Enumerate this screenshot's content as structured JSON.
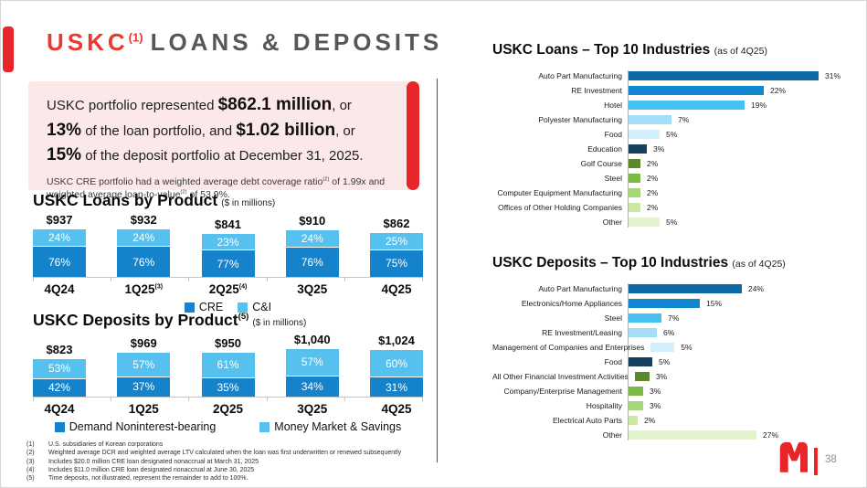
{
  "slide": {
    "title_red": "USKC",
    "title_sup": "(1)",
    "title_rest": "LOANS & DEPOSITS",
    "page_number": "38",
    "accent_red": "#e8262a"
  },
  "callout": {
    "p1": [
      {
        "t": "USKC portfolio represented ",
        "b": false
      },
      {
        "t": "$862.1 million",
        "b": true
      },
      {
        "t": ", or ",
        "b": false
      },
      {
        "t": "13%",
        "b": true
      },
      {
        "t": " of the loan portfolio, and ",
        "b": false
      },
      {
        "t": "$1.02 billion",
        "b": true
      },
      {
        "t": ", or ",
        "b": false
      },
      {
        "t": "15%",
        "b": true
      },
      {
        "t": " of the deposit portfolio at December 31, 2025.",
        "b": false
      }
    ],
    "p2": [
      {
        "t": "USKC CRE portfolio had a weighted average debt coverage ratio",
        "sup": false
      },
      {
        "t": "(2)",
        "sup": true
      },
      {
        "t": " of 1.99x and weighted average loan-to-value",
        "sup": false
      },
      {
        "t": "(2)",
        "sup": true
      },
      {
        "t": " of 53.9%.",
        "sup": false
      }
    ]
  },
  "chart_data": [
    {
      "type": "bar",
      "stacked": true,
      "title": "USKC Loans by Product",
      "subtitle": "($ in millions)",
      "unit_totals": "$ millions",
      "unit_segments": "%",
      "categories": [
        "4Q24",
        "1Q25",
        "2Q25",
        "3Q25",
        "4Q25"
      ],
      "category_sups": [
        "",
        "(3)",
        "(4)",
        "",
        ""
      ],
      "totals": [
        "$937",
        "$932",
        "$841",
        "$910",
        "$862"
      ],
      "total_values": [
        937,
        932,
        841,
        910,
        862
      ],
      "series": [
        {
          "name": "CRE",
          "color": "#1583cb",
          "values": [
            76,
            76,
            77,
            76,
            75
          ]
        },
        {
          "name": "C&I",
          "color": "#56c0ef",
          "values": [
            24,
            24,
            23,
            24,
            25
          ]
        }
      ],
      "legend_position": "bottom"
    },
    {
      "type": "bar",
      "stacked": true,
      "title": "USKC Deposits by Product",
      "title_sup": "(5)",
      "subtitle": "($ in millions)",
      "unit_totals": "$ millions",
      "unit_segments": "%",
      "categories": [
        "4Q24",
        "1Q25",
        "2Q25",
        "3Q25",
        "4Q25"
      ],
      "category_sups": [
        "",
        "",
        "",
        "",
        ""
      ],
      "totals": [
        "$823",
        "$969",
        "$950",
        "$1,040",
        "$1,024"
      ],
      "total_values": [
        823,
        969,
        950,
        1040,
        1024
      ],
      "series": [
        {
          "name": "Demand Noninterest-bearing",
          "color": "#1583cb",
          "values": [
            42,
            37,
            35,
            34,
            31
          ]
        },
        {
          "name": "Money Market & Savings",
          "color": "#56c0ef",
          "values": [
            53,
            57,
            61,
            57,
            60
          ]
        }
      ],
      "legend_position": "bottom"
    },
    {
      "type": "bar-horizontal",
      "title": "USKC Loans – Top 10 Industries",
      "subtitle": "(as of 4Q25)",
      "unit": "%",
      "xlim": [
        0,
        31
      ],
      "categories": [
        "Auto Part Manufacturing",
        "RE Investment",
        "Hotel",
        "Polyester Manufacturing",
        "Food",
        "Education",
        "Golf Course",
        "Steel",
        "Computer Equipment Manufacturing",
        "Offices of Other Holding Companies",
        "Other"
      ],
      "values": [
        31,
        22,
        19,
        7,
        5,
        3,
        2,
        2,
        2,
        2,
        5
      ],
      "labels": [
        "31%",
        "22%",
        "19%",
        "7%",
        "5%",
        "3%",
        "2%",
        "2%",
        "2%",
        "2%",
        "5%"
      ],
      "colors": [
        "#0f69a6",
        "#1187d0",
        "#45c1f2",
        "#a3def8",
        "#d2f0fc",
        "#15405f",
        "#5b8a2d",
        "#7cb944",
        "#a6d877",
        "#c9e9a2",
        "#e1f4cb"
      ]
    },
    {
      "type": "bar-horizontal",
      "title": "USKC Deposits – Top 10 Industries",
      "subtitle": "(as of 4Q25)",
      "unit": "%",
      "xlim": [
        0,
        27
      ],
      "categories": [
        "Auto Part Manufacturing",
        "Electronics/Home Appliances",
        "Steel",
        "RE Investment/Leasing",
        "Management of Companies and Enterprises",
        "Food",
        "All Other Financial Investment Activities",
        "Company/Enterprise Management",
        "Hospitality",
        "Electrical Auto Parts",
        "Other"
      ],
      "values": [
        24,
        15,
        7,
        6,
        5,
        5,
        3,
        3,
        3,
        2,
        27
      ],
      "labels": [
        "24%",
        "15%",
        "7%",
        "6%",
        "5%",
        "5%",
        "3%",
        "3%",
        "3%",
        "2%",
        "27%"
      ],
      "colors": [
        "#0f69a6",
        "#1187d0",
        "#45c1f2",
        "#a3def8",
        "#d2f0fc",
        "#15405f",
        "#5b8a2d",
        "#7cb944",
        "#a6d877",
        "#c9e9a2",
        "#e1f4cb"
      ]
    }
  ],
  "footnotes": [
    {
      "num": "(1)",
      "text": "U.S. subsidiaries of Korean corporations"
    },
    {
      "num": "(2)",
      "text": "Weighted average DCR and weighted average LTV calculated when the loan was first underwritten or renewed subsequently"
    },
    {
      "num": "(3)",
      "text": "Includes $20.0 million CRE loan designated nonaccrual at March 31, 2025"
    },
    {
      "num": "(4)",
      "text": "Includes $11.0 million CRE loan designated nonaccrual at June 30, 2025"
    },
    {
      "num": "(5)",
      "text": "Time deposits, not illustrated, represent the remainder to add to 100%."
    }
  ]
}
